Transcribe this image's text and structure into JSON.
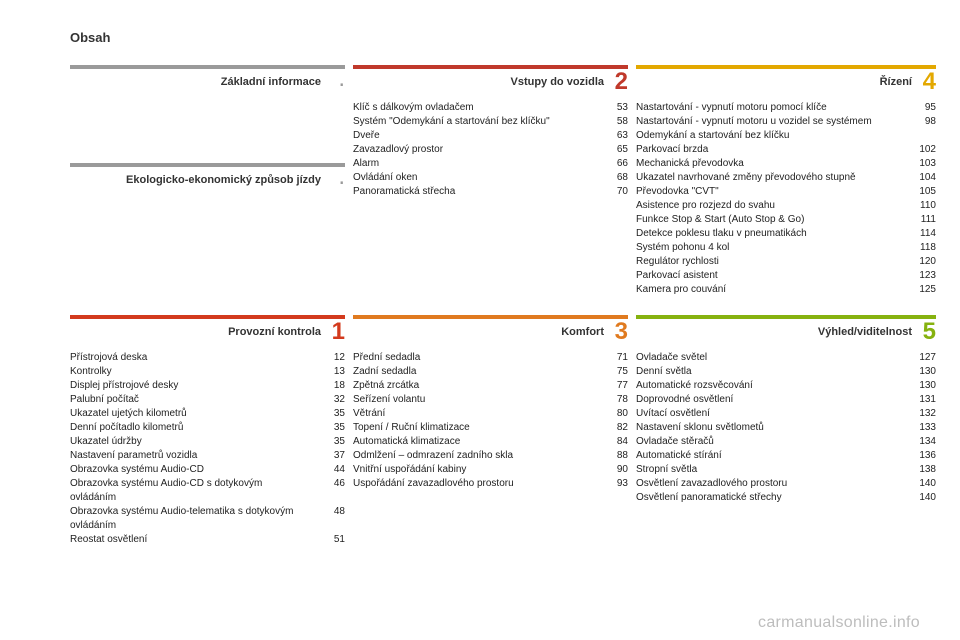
{
  "pageTitle": "Obsah",
  "watermark": "carmanualsonline.info",
  "columns": [
    [
      {
        "section_id": "basic-info",
        "title": "Základní informace",
        "number": null,
        "dot": true,
        "border_color": "#9a9a9a",
        "number_color": "#9a9a9a",
        "items": []
      },
      {
        "section_id": "eco",
        "title": "Ekologicko-ekonomický způsob jízdy",
        "number": null,
        "dot": true,
        "border_color": "#9a9a9a",
        "number_color": "#9a9a9a",
        "items": []
      }
    ],
    [
      {
        "section_id": "access",
        "title": "Vstupy do vozidla",
        "number": "2",
        "border_color": "#c0392b",
        "number_color": "#c0392b",
        "items": [
          {
            "label": "Klíč s dálkovým ovladačem",
            "page": "53"
          },
          {
            "label": "Systém \"Odemykání a startování bez klíčku\"",
            "page": "58"
          },
          {
            "label": "Dveře",
            "page": "63"
          },
          {
            "label": "Zavazadlový prostor",
            "page": "65"
          },
          {
            "label": "Alarm",
            "page": "66"
          },
          {
            "label": "Ovládání oken",
            "page": "68"
          },
          {
            "label": "Panoramatická střecha",
            "page": "70"
          }
        ]
      }
    ],
    [
      {
        "section_id": "driving",
        "title": "Řízení",
        "number": "4",
        "border_color": "#e3a800",
        "number_color": "#e3a800",
        "items": [
          {
            "label": "Nastartování - vypnutí motoru pomocí klíče",
            "page": "95"
          },
          {
            "label": "Nastartování - vypnutí motoru u vozidel se systémem Odemykání a startování bez klíčku",
            "page": "98"
          },
          {
            "label": "Parkovací brzda",
            "page": "102"
          },
          {
            "label": "Mechanická převodovka",
            "page": "103"
          },
          {
            "label": "Ukazatel navrhované změny převodového stupně",
            "page": "104"
          },
          {
            "label": "Převodovka \"CVT\"",
            "page": "105"
          },
          {
            "label": "Asistence pro rozjezd do svahu",
            "page": "110"
          },
          {
            "label": "Funkce Stop & Start (Auto Stop & Go)",
            "page": "111"
          },
          {
            "label": "Detekce poklesu tlaku v pneumatikách",
            "page": "114"
          },
          {
            "label": "Systém pohonu 4 kol",
            "page": "118"
          },
          {
            "label": "Regulátor rychlosti",
            "page": "120"
          },
          {
            "label": "Parkovací asistent",
            "page": "123"
          },
          {
            "label": "Kamera pro couvání",
            "page": "125"
          }
        ]
      }
    ],
    [
      {
        "section_id": "controls",
        "title": "Provozní kontrola",
        "number": "1",
        "border_color": "#d33a1d",
        "number_color": "#d33a1d",
        "items": [
          {
            "label": "Přístrojová deska",
            "page": "12"
          },
          {
            "label": "Kontrolky",
            "page": "13"
          },
          {
            "label": "Displej přístrojové desky",
            "page": "18"
          },
          {
            "label": "Palubní počítač",
            "page": "32"
          },
          {
            "label": "Ukazatel ujetých kilometrů",
            "page": "35"
          },
          {
            "label": "Denní počítadlo kilometrů",
            "page": "35"
          },
          {
            "label": "Ukazatel údržby",
            "page": "35"
          },
          {
            "label": "Nastavení parametrů vozidla",
            "page": "37"
          },
          {
            "label": "Obrazovka systému Audio-CD",
            "page": "44"
          },
          {
            "label": "Obrazovka systému Audio-CD s dotykovým ovládáním",
            "page": "46"
          },
          {
            "label": "Obrazovka systému Audio-telematika s dotykovým ovládáním",
            "page": "48"
          },
          {
            "label": "Reostat osvětlení",
            "page": "51"
          }
        ]
      }
    ],
    [
      {
        "section_id": "comfort",
        "title": "Komfort",
        "number": "3",
        "border_color": "#e07a1f",
        "number_color": "#e07a1f",
        "items": [
          {
            "label": "Přední sedadla",
            "page": "71"
          },
          {
            "label": "Zadní sedadla",
            "page": "75"
          },
          {
            "label": "Zpětná zrcátka",
            "page": "77"
          },
          {
            "label": "Seřízení volantu",
            "page": "78"
          },
          {
            "label": "Větrání",
            "page": "80"
          },
          {
            "label": "Topení / Ruční klimatizace",
            "page": "82"
          },
          {
            "label": "Automatická klimatizace",
            "page": "84"
          },
          {
            "label": "Odmlžení – odmrazení zadního skla",
            "page": "88"
          },
          {
            "label": "Vnitřní uspořádání kabiny",
            "page": "90"
          },
          {
            "label": "Uspořádání zavazadlového prostoru",
            "page": "93"
          }
        ]
      }
    ],
    [
      {
        "section_id": "visibility",
        "title": "Výhled/viditelnost",
        "number": "5",
        "border_color": "#86b20f",
        "number_color": "#86b20f",
        "items": [
          {
            "label": "Ovladače světel",
            "page": "127"
          },
          {
            "label": "Denní světla",
            "page": "130"
          },
          {
            "label": "Automatické rozsvěcování",
            "page": "130"
          },
          {
            "label": "Doprovodné osvětlení",
            "page": "131"
          },
          {
            "label": "Uvítací osvětlení",
            "page": "132"
          },
          {
            "label": "Nastavení sklonu světlometů",
            "page": "133"
          },
          {
            "label": "Ovladače stěračů",
            "page": "134"
          },
          {
            "label": "Automatické stírání",
            "page": "136"
          },
          {
            "label": "Stropní světla",
            "page": "138"
          },
          {
            "label": "Osvětlení zavazadlového prostoru",
            "page": "140"
          },
          {
            "label": "Osvětlení panoramatické střechy",
            "page": "140"
          }
        ]
      }
    ]
  ]
}
